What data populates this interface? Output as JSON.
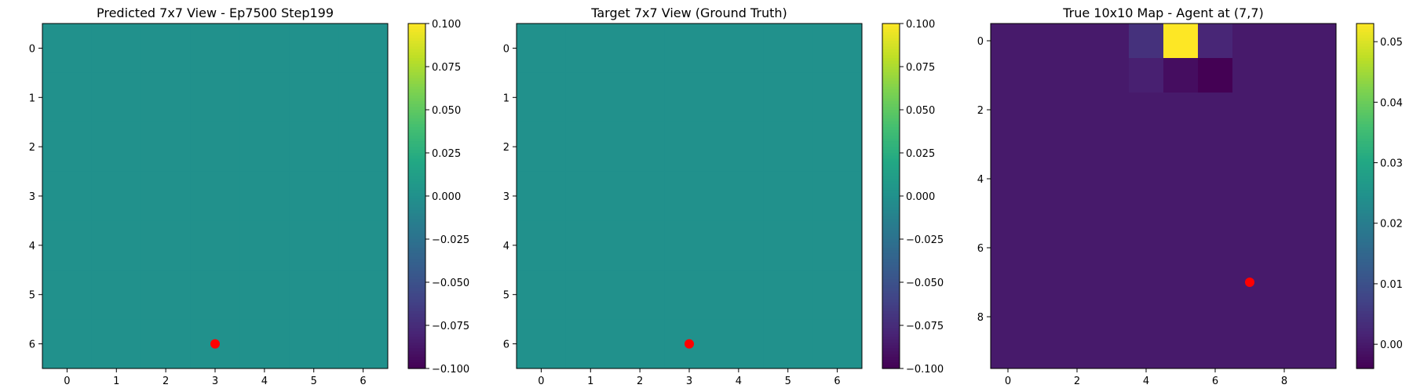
{
  "chart_data": [
    {
      "type": "heatmap",
      "title": "Predicted 7x7 View - Ep7500 Step199",
      "xlabel": "",
      "ylabel": "",
      "rows": 7,
      "cols": 7,
      "values": [
        [
          0,
          0,
          0,
          0,
          0,
          0,
          0
        ],
        [
          0,
          0,
          0,
          0,
          0,
          0,
          0
        ],
        [
          0,
          0,
          0,
          0,
          0,
          0,
          0
        ],
        [
          0,
          0,
          0,
          0,
          0,
          0,
          0
        ],
        [
          0,
          0,
          0,
          0,
          0,
          0,
          0
        ],
        [
          0,
          0,
          0,
          0,
          0,
          0,
          0
        ],
        [
          0,
          0,
          0,
          0,
          0,
          0,
          0
        ]
      ],
      "vmin": -0.1,
      "vmax": 0.1,
      "xticks": [
        0,
        1,
        2,
        3,
        4,
        5,
        6
      ],
      "yticks": [
        0,
        1,
        2,
        3,
        4,
        5,
        6
      ],
      "colorbar_ticks": [
        0.1,
        0.075,
        0.05,
        0.025,
        0.0,
        -0.025,
        -0.05,
        -0.075,
        -0.1
      ],
      "colorbar_labels": [
        "0.100",
        "0.075",
        "0.050",
        "0.025",
        "0.000",
        "−0.025",
        "−0.050",
        "−0.075",
        "−0.100"
      ],
      "marker": {
        "x": 3,
        "y": 6,
        "color": "#ff0000"
      }
    },
    {
      "type": "heatmap",
      "title": "Target 7x7 View (Ground Truth)",
      "xlabel": "",
      "ylabel": "",
      "rows": 7,
      "cols": 7,
      "values": [
        [
          0,
          0,
          0,
          0,
          0,
          0,
          0
        ],
        [
          0,
          0,
          0,
          0,
          0,
          0,
          0
        ],
        [
          0,
          0,
          0,
          0,
          0,
          0,
          0
        ],
        [
          0,
          0,
          0,
          0,
          0,
          0,
          0
        ],
        [
          0,
          0,
          0,
          0,
          0,
          0,
          0
        ],
        [
          0,
          0,
          0,
          0,
          0,
          0,
          0
        ],
        [
          0,
          0,
          0,
          0,
          0,
          0,
          0
        ]
      ],
      "vmin": -0.1,
      "vmax": 0.1,
      "xticks": [
        0,
        1,
        2,
        3,
        4,
        5,
        6
      ],
      "yticks": [
        0,
        1,
        2,
        3,
        4,
        5,
        6
      ],
      "colorbar_ticks": [
        0.1,
        0.075,
        0.05,
        0.025,
        0.0,
        -0.025,
        -0.05,
        -0.075,
        -0.1
      ],
      "colorbar_labels": [
        "0.100",
        "0.075",
        "0.050",
        "0.025",
        "0.000",
        "−0.025",
        "−0.050",
        "−0.075",
        "−0.100"
      ],
      "marker": {
        "x": 3,
        "y": 6,
        "color": "#ff0000"
      }
    },
    {
      "type": "heatmap",
      "title": "True 10x10 Map - Agent at (7,7)",
      "xlabel": "",
      "ylabel": "",
      "rows": 10,
      "cols": 10,
      "values": [
        [
          0,
          0,
          0,
          0,
          0.004,
          0.053,
          0.002,
          0,
          0,
          0
        ],
        [
          0,
          0,
          0,
          0,
          0.001,
          -0.002,
          -0.004,
          0,
          0,
          0
        ],
        [
          0,
          0,
          0,
          0,
          0,
          0,
          0,
          0,
          0,
          0
        ],
        [
          0,
          0,
          0,
          0,
          0,
          0,
          0,
          0,
          0,
          0
        ],
        [
          0,
          0,
          0,
          0,
          0,
          0,
          0,
          0,
          0,
          0
        ],
        [
          0,
          0,
          0,
          0,
          0,
          0,
          0,
          0,
          0,
          0
        ],
        [
          0,
          0,
          0,
          0,
          0,
          0,
          0,
          0,
          0,
          0
        ],
        [
          0,
          0,
          0,
          0,
          0,
          0,
          0,
          0,
          0,
          0
        ],
        [
          0,
          0,
          0,
          0,
          0,
          0,
          0,
          0,
          0,
          0
        ],
        [
          0,
          0,
          0,
          0,
          0,
          0,
          0,
          0,
          0,
          0
        ]
      ],
      "vmin": -0.004,
      "vmax": 0.053,
      "xticks": [
        0,
        2,
        4,
        6,
        8
      ],
      "yticks": [
        0,
        2,
        4,
        6,
        8
      ],
      "colorbar_ticks": [
        0.05,
        0.04,
        0.03,
        0.02,
        0.01,
        0.0
      ],
      "colorbar_labels": [
        "0.05",
        "0.04",
        "0.03",
        "0.02",
        "0.01",
        "0.00"
      ],
      "marker": {
        "x": 7,
        "y": 7,
        "color": "#ff0000"
      }
    }
  ]
}
